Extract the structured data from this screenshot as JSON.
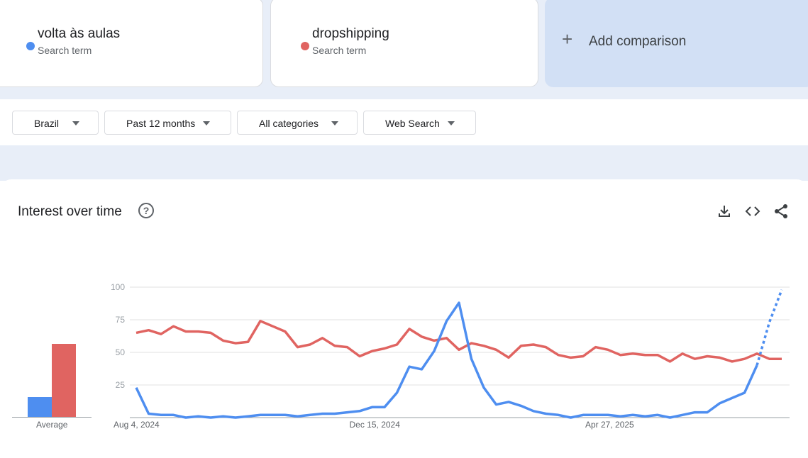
{
  "terms": [
    {
      "name": "volta às aulas",
      "subtitle": "Search term",
      "color": "#4e8ef0"
    },
    {
      "name": "dropshipping",
      "subtitle": "Search term",
      "color": "#e06461"
    }
  ],
  "add_comparison": {
    "icon": "plus-icon",
    "label": "Add comparison"
  },
  "filters": {
    "region": "Brazil",
    "time_range": "Past 12 months",
    "category": "All categories",
    "property": "Web Search"
  },
  "panel": {
    "title": "Interest over time",
    "icons": [
      "help-icon",
      "download-icon",
      "embed-code-icon",
      "share-icon"
    ]
  },
  "averages": {
    "label": "Average",
    "values": [
      {
        "term": "volta às aulas",
        "value": 15
      },
      {
        "term": "dropshipping",
        "value": 55
      }
    ]
  },
  "chart_data": {
    "type": "line",
    "ylim": [
      0,
      100
    ],
    "yticks": [
      25,
      50,
      75,
      100
    ],
    "x_tick_labels": [
      "Aug 4, 2024",
      "Dec 15, 2024",
      "Apr 27, 2025"
    ],
    "x_tick_index": [
      0,
      19,
      38
    ],
    "grid": true,
    "series": [
      {
        "name": "volta às aulas",
        "color": "#4e8ef0",
        "values": [
          23,
          3,
          2,
          2,
          0,
          1,
          0,
          1,
          0,
          1,
          2,
          2,
          2,
          1,
          2,
          3,
          3,
          4,
          5,
          8,
          8,
          19,
          39,
          37,
          51,
          74,
          88,
          45,
          23,
          10,
          12,
          9,
          5,
          3,
          2,
          0,
          2,
          2,
          2,
          1,
          2,
          1,
          2,
          0,
          2,
          4,
          4,
          11,
          15,
          19,
          40,
          73,
          98
        ],
        "partial_last_points": 2
      },
      {
        "name": "dropshipping",
        "color": "#e06461",
        "values": [
          65,
          67,
          64,
          70,
          66,
          66,
          65,
          59,
          57,
          58,
          74,
          70,
          66,
          54,
          56,
          61,
          55,
          54,
          47,
          51,
          53,
          56,
          68,
          62,
          59,
          61,
          52,
          57,
          55,
          52,
          46,
          55,
          56,
          54,
          48,
          46,
          47,
          54,
          52,
          48,
          49,
          48,
          48,
          43,
          49,
          45,
          47,
          46,
          43,
          45,
          49,
          45,
          45
        ]
      }
    ]
  }
}
